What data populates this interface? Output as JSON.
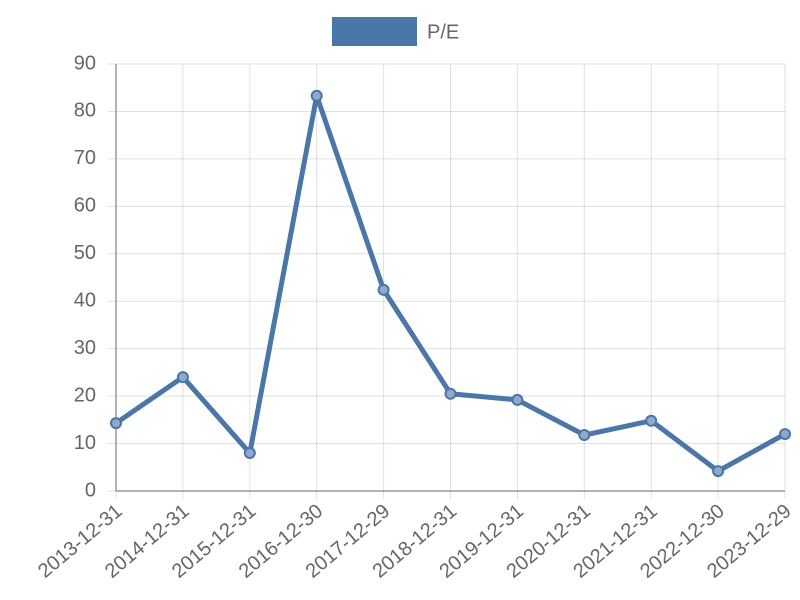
{
  "chart_data": {
    "type": "line",
    "categories": [
      "2013-12-31",
      "2014-12-31",
      "2015-12-31",
      "2016-12-30",
      "2017-12-29",
      "2018-12-31",
      "2019-12-31",
      "2020-12-31",
      "2021-12-31",
      "2022-12-30",
      "2023-12-29"
    ],
    "series": [
      {
        "name": "P/E",
        "color": "#4a76a8",
        "values": [
          14.3,
          24.0,
          8.0,
          83.3,
          42.4,
          20.5,
          19.2,
          11.8,
          14.8,
          4.2,
          12.0
        ]
      }
    ],
    "ylim": [
      0,
      90
    ],
    "yticks": [
      0,
      10,
      20,
      30,
      40,
      50,
      60,
      70,
      80,
      90
    ],
    "grid": true,
    "legend": "top"
  }
}
